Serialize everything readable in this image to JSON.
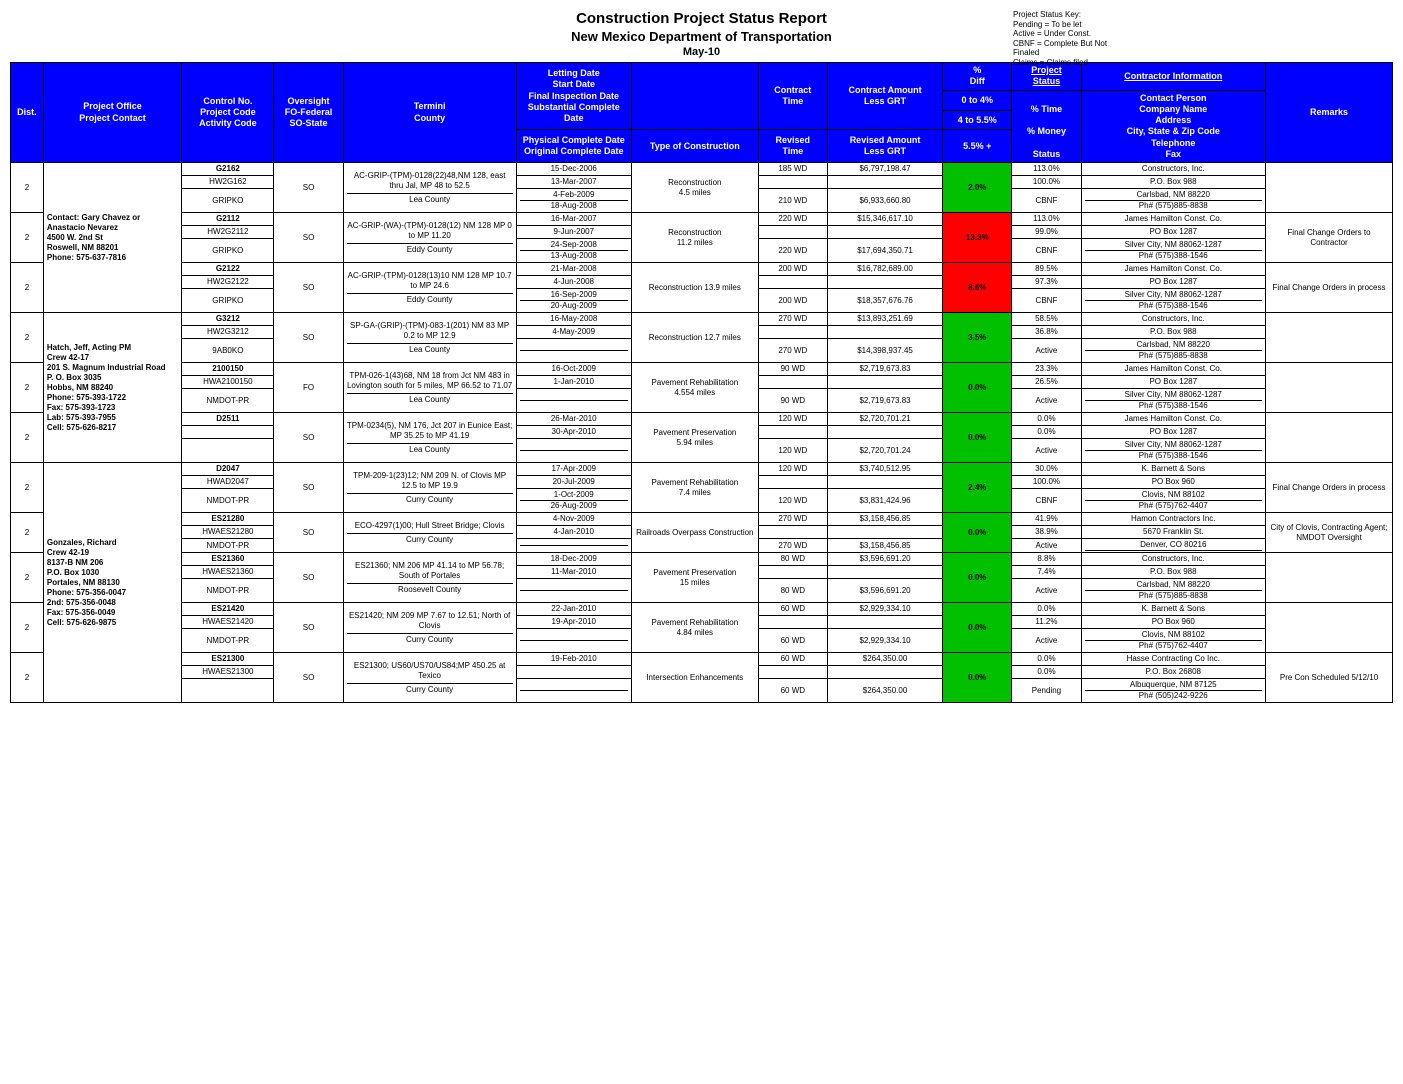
{
  "header": {
    "title": "Construction Project Status Report",
    "subtitle": "New Mexico Department of Transportation",
    "date": "May-10",
    "key_title": "Project Status Key:",
    "key_lines": [
      "Pending = To be let",
      "Active = Under Const.",
      "CBNF = Complete But Not Finaled",
      "Claims = Claims filed"
    ]
  },
  "columns": {
    "dist": "Dist.",
    "office": "Project Office\nProject Contact",
    "ctrl": "Control No.\nProject Code\nActivity Code",
    "over": "Oversight\nFO-Federal\nSO-State",
    "termini": "Termini\nCounty",
    "dates_top": "Letting Date\nStart Date\nFinal Inspection Date\nSubstantial Complete Date",
    "dates_bot": "Physical Complete Date\nOriginal Complete Date",
    "type": "Type of Construction",
    "time_top": "Contract\nTime",
    "time_bot": "Revised\nTime",
    "amt_top": "Contract Amount\nLess GRT",
    "amt_bot": "Revised Amount\nLess GRT",
    "diff": "%\nDiff",
    "legend0": "0 to 4%",
    "legend4": "4 to 5.5%",
    "legend5": "5.5%  +",
    "status_link": "Project Status",
    "ptime": "% Time",
    "pmoney": "% Money",
    "pstatus": "Status",
    "contractor_link": "Contractor Information",
    "contractor": "Contact Person\nCompany Name\nAddress\nCity, State & Zip Code\nTelephone\nFax",
    "remarks": "Remarks"
  },
  "contacts": {
    "c1": "Contact: Gary Chavez or Anastacio Nevarez\n4500 W. 2nd St\nRoswell, NM 88201\nPhone: 575-637-7816",
    "c2": "Hatch, Jeff, Acting PM\nCrew 42-17\n201 S. Magnum Industrial Road\nP. O. Box 3035\nHobbs, NM 88240\nPhone: 575-393-1722\nFax: 575-393-1723\nLab: 575-393-7955\nCell: 575-626-8217",
    "c3": "Gonzales, Richard\nCrew 42-19\n8137-B NM 206\nP.O. Box 1030\nPortales, NM 88130\nPhone: 575-356-0047\n2nd: 575-356-0048\nFax: 575-356-0049\nCell: 575-626-9875"
  },
  "rows": [
    {
      "dist": "2",
      "office_ref": "c1",
      "ctrl": [
        "G2162",
        "HW2G162",
        "GRIPKO"
      ],
      "over": "SO",
      "termini": "AC-GRIP-(TPM)-0128(22)48,NM 128, east thru Jal, MP 48 to 52.5",
      "county": "Lea County",
      "dates": [
        "15-Dec-2006",
        "13-Mar-2007",
        "4-Feb-2009",
        "18-Aug-2008"
      ],
      "type": "Reconstruction\n4.5 miles",
      "time": [
        "185 WD",
        "210 WD"
      ],
      "amt": [
        "$6,797,198.47",
        "$6,933,660.80"
      ],
      "diff": "2.0%",
      "diff_cls": "pct-green",
      "pct": [
        "113.0%",
        "100.0%",
        "CBNF"
      ],
      "contr": [
        "Constructors, Inc.",
        "P.O. Box 988",
        "Carlsbad, NM 88220",
        "Ph# (575)885-8838"
      ],
      "rem": ""
    },
    {
      "dist": "2",
      "office_ref": "",
      "ctrl": [
        "G2112",
        "HW2G2112",
        "GRIPKO"
      ],
      "over": "SO",
      "termini": "AC-GRIP-(WA)-(TPM)-0128(12) NM 128 MP 0 to MP 11.20",
      "county": "Eddy County",
      "dates": [
        "16-Mar-2007",
        "9-Jun-2007",
        "24-Sep-2008",
        "13-Aug-2008"
      ],
      "type": "Reconstruction\n11.2 miles",
      "time": [
        "220 WD",
        "220 WD"
      ],
      "amt": [
        "$15,346,617.10",
        "$17,694,350.71"
      ],
      "diff": "13.3%",
      "diff_cls": "pct-red",
      "pct": [
        "113.0%",
        "99.0%",
        "CBNF"
      ],
      "contr": [
        "James Hamilton Const. Co.",
        "PO Box 1287",
        "Silver City, NM 88062-1287",
        "Ph# (575)388-1546"
      ],
      "rem": "Final Change Orders to Contractor"
    },
    {
      "dist": "2",
      "office_ref": "",
      "ctrl": [
        "G2122",
        "HW2G2122",
        "GRIPKO"
      ],
      "over": "SO",
      "termini": "AC-GRIP-(TPM)-0128(13)10 NM 128 MP 10.7 to MP 24.6",
      "county": "Eddy County",
      "dates": [
        "21-Mar-2008",
        "4-Jun-2008",
        "16-Sep-2009",
        "20-Aug-2009"
      ],
      "type": "Reconstruction 13.9 miles",
      "time": [
        "200 WD",
        "200 WD"
      ],
      "amt": [
        "$16,782,689.00",
        "$18,357,676.76"
      ],
      "diff": "8.6%",
      "diff_cls": "pct-red",
      "pct": [
        "89.5%",
        "97.3%",
        "CBNF"
      ],
      "contr": [
        "James Hamilton Const. Co.",
        "PO Box 1287",
        "Silver City, NM 88062-1287",
        "Ph# (575)388-1546"
      ],
      "rem": "Final Change Orders in process"
    },
    {
      "dist": "2",
      "office_ref": "c2",
      "ctrl": [
        "G3212",
        "HW2G3212",
        "9AB0KO"
      ],
      "over": "SO",
      "termini": "SP-GA-(GRIP)-(TPM)-083-1(201) NM 83 MP 0.2 to MP 12.9",
      "county": "Lea County",
      "dates": [
        "16-May-2008",
        "4-May-2009",
        "",
        ""
      ],
      "type": "Reconstruction 12.7 miles",
      "time": [
        "270 WD",
        "270 WD"
      ],
      "amt": [
        "$13,893,251.69",
        "$14,398,937.45"
      ],
      "diff": "3.5%",
      "diff_cls": "pct-green",
      "pct": [
        "58.5%",
        "36.8%",
        "Active"
      ],
      "contr": [
        "Constructors, Inc.",
        "P.O. Box 988",
        "Carlsbad, NM 88220",
        "Ph# (575)885-8838"
      ],
      "rem": ""
    },
    {
      "dist": "2",
      "office_ref": "",
      "ctrl": [
        "2100150",
        "HWA2100150",
        "NMDOT-PR"
      ],
      "over": "FO",
      "termini": "TPM-026-1(43)68, NM 18 from Jct NM 483 in Lovington south for 5 miles, MP 66.52 to 71.07",
      "county": "Lea County",
      "dates": [
        "16-Oct-2009",
        "1-Jan-2010",
        "",
        ""
      ],
      "type": "Pavement Rehabilitation\n4.554 miles",
      "time": [
        "90 WD",
        "90 WD"
      ],
      "amt": [
        "$2,719,673.83",
        "$2,719,673.83"
      ],
      "diff": "0.0%",
      "diff_cls": "pct-green",
      "pct": [
        "23.3%",
        "26.5%",
        "Active"
      ],
      "contr": [
        "James Hamilton Const. Co.",
        "PO Box 1287",
        "Silver City, NM 88062-1287",
        "Ph# (575)388-1546"
      ],
      "rem": ""
    },
    {
      "dist": "2",
      "office_ref": "",
      "ctrl": [
        "D2511",
        "",
        ""
      ],
      "over": "SO",
      "termini": "TPM-0234(5), NM 176, Jct 207 in Eunice East; MP 35.25 to MP 41.19",
      "county": "Lea County",
      "dates": [
        "26-Mar-2010",
        "30-Apr-2010",
        "",
        ""
      ],
      "type": "Pavement Preservation\n5.94 miles",
      "time": [
        "120 WD",
        "120 WD"
      ],
      "amt": [
        "$2,720,701.21",
        "$2,720,701.24"
      ],
      "diff": "0.0%",
      "diff_cls": "pct-green",
      "pct": [
        "0.0%",
        "0.0%",
        "Active"
      ],
      "contr": [
        "James Hamilton Const. Co.",
        "PO Box 1287",
        "Silver City, NM 88062-1287",
        "Ph# (575)388-1546"
      ],
      "rem": ""
    },
    {
      "dist": "2",
      "office_ref": "c3",
      "ctrl": [
        "D2047",
        "HWAD2047",
        "NMDOT-PR"
      ],
      "over": "SO",
      "termini": "TPM-209-1(23)12; NM 209 N. of Clovis MP 12.5 to MP 19.9",
      "county": "Curry County",
      "dates": [
        "17-Apr-2009",
        "20-Jul-2009",
        "1-Oct-2009",
        "26-Aug-2009"
      ],
      "type": "Pavement Rehabilitation\n7.4 miles",
      "time": [
        "120 WD",
        "120 WD"
      ],
      "amt": [
        "$3,740,512.95",
        "$3,831,424.96"
      ],
      "diff": "2.4%",
      "diff_cls": "pct-green",
      "pct": [
        "30.0%",
        "100.0%",
        "CBNF"
      ],
      "contr": [
        "K. Barnett & Sons",
        "PO Box 960",
        "Clovis, NM 88102",
        "Ph# (575)762-4407"
      ],
      "rem": "Final Change Orders in process"
    },
    {
      "dist": "2",
      "office_ref": "",
      "ctrl": [
        "ES21280",
        "HWAES21280",
        "NMDOT-PR"
      ],
      "over": "SO",
      "termini": "ECO-4297(1)00; Hull Street Bridge; Clovis",
      "county": "Curry County",
      "dates": [
        "4-Nov-2009",
        "4-Jan-2010",
        "",
        ""
      ],
      "type": "Railroads Overpass Construction",
      "time": [
        "270 WD",
        "270 WD"
      ],
      "amt": [
        "$3,158,456.85",
        "$3,158,456.85"
      ],
      "diff": "0.0%",
      "diff_cls": "pct-green",
      "pct": [
        "41.9%",
        "38.9%",
        "Active"
      ],
      "contr": [
        "Hamon Contractors Inc.",
        "5670 Franklin St.",
        "Denver, CO 80216",
        ""
      ],
      "rem": "City of Clovis, Contracting Agent; NMDOT Oversight"
    },
    {
      "dist": "2",
      "office_ref": "",
      "ctrl": [
        "ES21360",
        "HWAES21360",
        "NMDOT-PR"
      ],
      "over": "SO",
      "termini": "ES21360; NM 206 MP 41.14 to MP 56.78; South of Portales",
      "county": "Roosevelt County",
      "dates": [
        "18-Dec-2009",
        "11-Mar-2010",
        "",
        ""
      ],
      "type": "Pavement Preservation\n15 miles",
      "time": [
        "80 WD",
        "80 WD"
      ],
      "amt": [
        "$3,596,691.20",
        "$3,596,691.20"
      ],
      "diff": "0.0%",
      "diff_cls": "pct-green",
      "pct": [
        "8.8%",
        "7.4%",
        "Active"
      ],
      "contr": [
        "Constructors, Inc.",
        "P.O. Box 988",
        "Carlsbad, NM 88220",
        "Ph# (575)885-8838"
      ],
      "rem": ""
    },
    {
      "dist": "2",
      "office_ref": "",
      "ctrl": [
        "ES21420",
        "HWAES21420",
        "NMDOT-PR"
      ],
      "over": "SO",
      "termini": "ES21420; NM 209 MP 7.67 to 12.51; North of Clovis",
      "county": "Curry County",
      "dates": [
        "22-Jan-2010",
        "19-Apr-2010",
        "",
        ""
      ],
      "type": "Pavement Rehabilitation\n4.84 miles",
      "time": [
        "60 WD",
        "60 WD"
      ],
      "amt": [
        "$2,929,334.10",
        "$2,929,334.10"
      ],
      "diff": "0.0%",
      "diff_cls": "pct-green",
      "pct": [
        "0.0%",
        "11.2%",
        "Active"
      ],
      "contr": [
        "K. Barnett & Sons",
        "PO Box 960",
        "Clovis, NM 88102",
        "Ph# (575)762-4407"
      ],
      "rem": ""
    },
    {
      "dist": "2",
      "office_ref": "",
      "ctrl": [
        "ES21300",
        "HWAES21300",
        ""
      ],
      "over": "SO",
      "termini": "ES21300; US60/US70/US84;MP 450.25 at Texico",
      "county": "Curry County",
      "dates": [
        "19-Feb-2010",
        "",
        "",
        ""
      ],
      "type": "Intersection Enhancements",
      "time": [
        "60 WD",
        "60 WD"
      ],
      "amt": [
        "$264,350.00",
        "$264,350.00"
      ],
      "diff": "0.0%",
      "diff_cls": "pct-green",
      "pct": [
        "0.0%",
        "0.0%",
        "Pending"
      ],
      "contr": [
        "Hasse Contracting Co Inc.",
        "P.O. Box 26808",
        "Albuquerque, NM 87125",
        "Ph# (505)242-9226"
      ],
      "rem": "Pre Con Scheduled 5/12/10"
    }
  ]
}
